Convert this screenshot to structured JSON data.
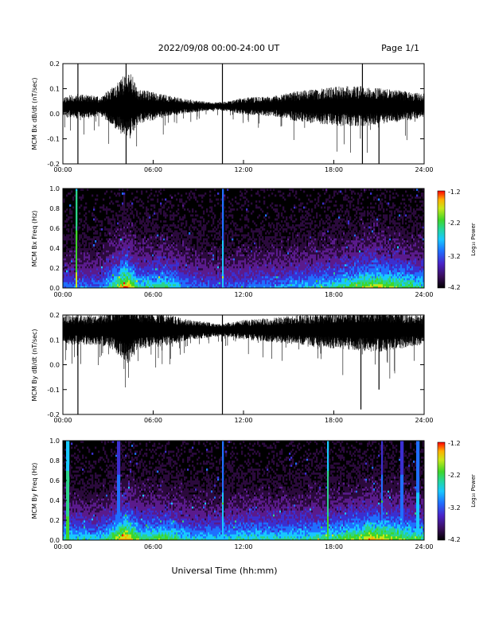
{
  "header": {
    "title": "2022/09/08  00:00-24:00 UT",
    "page": "Page 1/1"
  },
  "footer": {
    "xlabel": "Universal Time (hh:mm)"
  },
  "colors": {
    "background": "#ffffff",
    "spectrogram_bg": "#000000",
    "trace": "#000000",
    "colormap": [
      "#000000",
      "#2b0a3d",
      "#5a1b8c",
      "#3b2fd0",
      "#1f6fff",
      "#18c8ff",
      "#2bd48a",
      "#3ed62a",
      "#c8e81a",
      "#ffb000",
      "#ff3000",
      "#ff0000"
    ]
  },
  "chart_data": [
    {
      "type": "line",
      "ylabel": "MCM Bx dB/dt (nT/sec)",
      "xlim": [
        0,
        24
      ],
      "ylim": [
        -0.2,
        0.2
      ],
      "yticks": [
        "-0.2",
        "-0.1",
        "0.0",
        "0.1",
        "0.2"
      ],
      "xticks": [
        "00:00",
        "06:00",
        "12:00",
        "18:00",
        "24:00"
      ],
      "grid": false,
      "baseline": 0.03,
      "amplitude_envelope": [
        {
          "t": 0.0,
          "a": 0.04
        },
        {
          "t": 1.0,
          "a": 0.05
        },
        {
          "t": 2.5,
          "a": 0.04
        },
        {
          "t": 3.2,
          "a": 0.07
        },
        {
          "t": 4.0,
          "a": 0.12
        },
        {
          "t": 4.5,
          "a": 0.14
        },
        {
          "t": 5.0,
          "a": 0.07
        },
        {
          "t": 6.5,
          "a": 0.05
        },
        {
          "t": 8.0,
          "a": 0.03
        },
        {
          "t": 10.0,
          "a": 0.015
        },
        {
          "t": 11.0,
          "a": 0.02
        },
        {
          "t": 12.0,
          "a": 0.035
        },
        {
          "t": 14.0,
          "a": 0.04
        },
        {
          "t": 15.5,
          "a": 0.06
        },
        {
          "t": 17.0,
          "a": 0.07
        },
        {
          "t": 18.5,
          "a": 0.08
        },
        {
          "t": 20.0,
          "a": 0.08
        },
        {
          "t": 21.5,
          "a": 0.07
        },
        {
          "t": 24.0,
          "a": 0.05
        }
      ],
      "spikes": [
        {
          "t": 1.0,
          "lo": -0.2,
          "hi": 0.2
        },
        {
          "t": 4.2,
          "lo": -0.2,
          "hi": 0.2
        },
        {
          "t": 10.6,
          "lo": -0.2,
          "hi": 0.2
        },
        {
          "t": 19.9,
          "lo": -0.2,
          "hi": 0.2
        },
        {
          "t": 21.0,
          "lo": -0.2,
          "hi": 0.1
        }
      ]
    },
    {
      "type": "heatmap",
      "ylabel": "MCM Bx Freq (Hz)",
      "colorbar_label": "Log₁₀ Power",
      "colorbar_ticks": [
        "-1.2",
        "-2.2",
        "-3.2",
        "-4.2"
      ],
      "clim": [
        -4.2,
        -1.2
      ],
      "xlim": [
        0,
        24
      ],
      "ylim": [
        0,
        1.0
      ],
      "yticks": [
        "0.0",
        "0.2",
        "0.4",
        "0.6",
        "0.8",
        "1.0"
      ],
      "xticks": [
        "00:00",
        "06:00",
        "12:00",
        "18:00",
        "24:00"
      ],
      "activity": [
        {
          "t": 0.0,
          "a": 0.35
        },
        {
          "t": 2.5,
          "a": 0.35
        },
        {
          "t": 3.5,
          "a": 0.6
        },
        {
          "t": 4.2,
          "a": 0.85
        },
        {
          "t": 5.0,
          "a": 0.5
        },
        {
          "t": 6.8,
          "a": 0.55
        },
        {
          "t": 8.5,
          "a": 0.35
        },
        {
          "t": 10.5,
          "a": 0.3
        },
        {
          "t": 12.0,
          "a": 0.35
        },
        {
          "t": 15.0,
          "a": 0.4
        },
        {
          "t": 18.0,
          "a": 0.5
        },
        {
          "t": 20.5,
          "a": 0.7
        },
        {
          "t": 22.5,
          "a": 0.6
        },
        {
          "t": 24.0,
          "a": 0.5
        }
      ],
      "lines": [
        {
          "t": 0.9,
          "strength": 0.9
        },
        {
          "t": 10.6,
          "strength": 0.6
        }
      ]
    },
    {
      "type": "line",
      "ylabel": "MCM By dB/dt (nT/sec)",
      "xlim": [
        0,
        24
      ],
      "ylim": [
        -0.2,
        0.2
      ],
      "yticks": [
        "-0.2",
        "-0.1",
        "0.0",
        "0.1",
        "0.2"
      ],
      "xticks": [
        "00:00",
        "06:00",
        "12:00",
        "18:00",
        "24:00"
      ],
      "grid": false,
      "baseline": 0.14,
      "amplitude_envelope": [
        {
          "t": 0.0,
          "a": 0.06
        },
        {
          "t": 2.5,
          "a": 0.06
        },
        {
          "t": 3.5,
          "a": 0.09
        },
        {
          "t": 4.3,
          "a": 0.14
        },
        {
          "t": 5.0,
          "a": 0.08
        },
        {
          "t": 6.5,
          "a": 0.07
        },
        {
          "t": 8.5,
          "a": 0.04
        },
        {
          "t": 10.5,
          "a": 0.025
        },
        {
          "t": 12.0,
          "a": 0.04
        },
        {
          "t": 14.0,
          "a": 0.05
        },
        {
          "t": 17.0,
          "a": 0.07
        },
        {
          "t": 19.0,
          "a": 0.08
        },
        {
          "t": 21.0,
          "a": 0.09
        },
        {
          "t": 24.0,
          "a": 0.06
        }
      ],
      "spikes": [
        {
          "t": 1.0,
          "lo": -0.2,
          "hi": 0.2
        },
        {
          "t": 10.6,
          "lo": -0.2,
          "hi": 0.2
        },
        {
          "t": 19.8,
          "lo": -0.18,
          "hi": 0.2
        },
        {
          "t": 21.0,
          "lo": -0.1,
          "hi": 0.2
        }
      ]
    },
    {
      "type": "heatmap",
      "ylabel": "MCM By Freq (Hz)",
      "colorbar_label": "Log₁₀ Power",
      "colorbar_ticks": [
        "-1.2",
        "-2.2",
        "-3.2",
        "-4.2"
      ],
      "clim": [
        -4.2,
        -1.2
      ],
      "xlim": [
        0,
        24
      ],
      "ylim": [
        0,
        1.0
      ],
      "yticks": [
        "0.0",
        "0.2",
        "0.4",
        "0.6",
        "0.8",
        "1.0"
      ],
      "xticks": [
        "00:00",
        "06:00",
        "12:00",
        "18:00",
        "24:00"
      ],
      "activity": [
        {
          "t": 0.0,
          "a": 0.5
        },
        {
          "t": 2.5,
          "a": 0.45
        },
        {
          "t": 3.5,
          "a": 0.65
        },
        {
          "t": 4.2,
          "a": 0.85
        },
        {
          "t": 5.2,
          "a": 0.55
        },
        {
          "t": 6.8,
          "a": 0.6
        },
        {
          "t": 8.5,
          "a": 0.45
        },
        {
          "t": 10.5,
          "a": 0.45
        },
        {
          "t": 12.0,
          "a": 0.5
        },
        {
          "t": 15.0,
          "a": 0.5
        },
        {
          "t": 18.0,
          "a": 0.55
        },
        {
          "t": 20.5,
          "a": 0.75
        },
        {
          "t": 22.5,
          "a": 0.65
        },
        {
          "t": 24.0,
          "a": 0.55
        }
      ],
      "lines": [
        {
          "t": 0.3,
          "strength": 0.8
        },
        {
          "t": 3.7,
          "strength": 0.5
        },
        {
          "t": 10.6,
          "strength": 0.6
        },
        {
          "t": 17.6,
          "strength": 0.8
        },
        {
          "t": 21.2,
          "strength": 0.5
        },
        {
          "t": 22.5,
          "strength": 0.5
        },
        {
          "t": 23.6,
          "strength": 0.6
        }
      ]
    }
  ]
}
